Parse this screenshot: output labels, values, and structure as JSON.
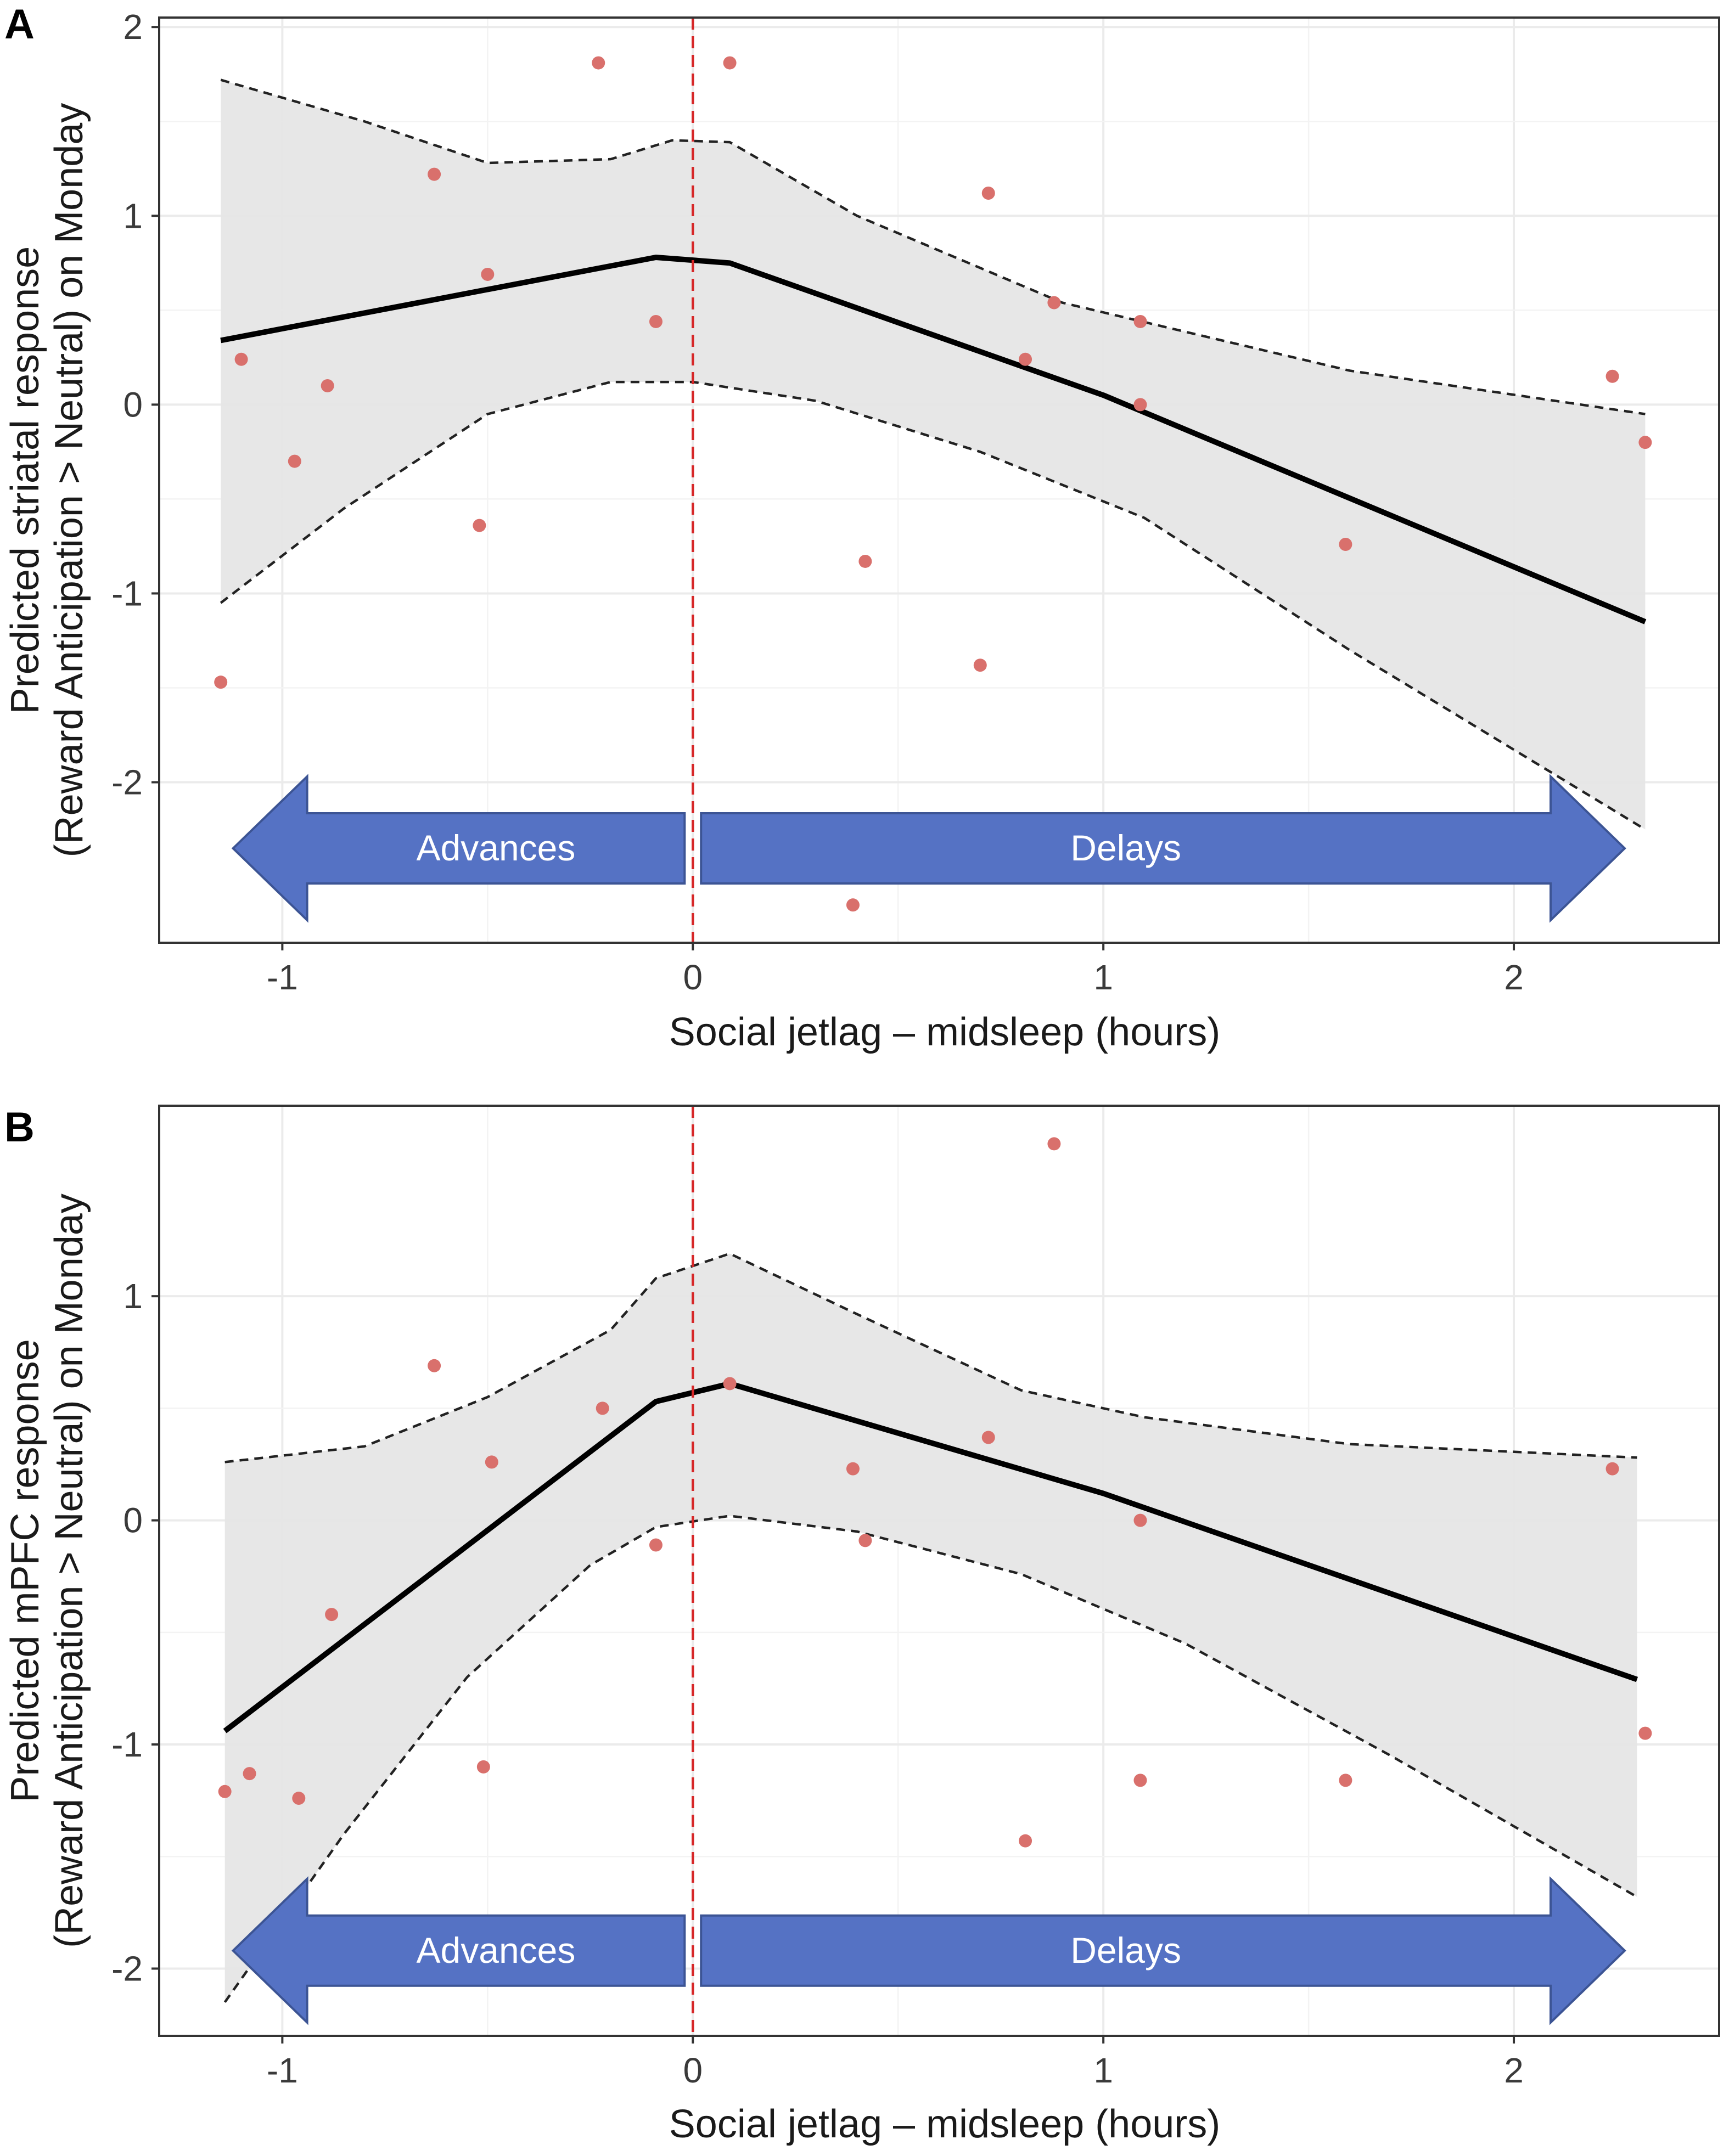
{
  "chart_data": [
    {
      "type": "scatter",
      "panel_label": "A",
      "xlabel": "Social jetlag – midsleep (hours)",
      "ylabel_line1": "Predicted striatal response",
      "ylabel_line2": "(Reward Anticipation > Neutral) on Monday",
      "xlim": [
        -1.3,
        2.5
      ],
      "ylim": [
        -2.85,
        2.05
      ],
      "x_ticks": [
        -1,
        0,
        1,
        2
      ],
      "y_ticks": [
        -2,
        -1,
        0,
        1,
        2
      ],
      "x_tick_labels": [
        "-1",
        "0",
        "1",
        "2"
      ],
      "y_tick_labels": [
        "-2",
        "-1",
        "0",
        "1",
        "2"
      ],
      "grid": true,
      "vline_x": 0,
      "vline_color": "#d62728",
      "point_color": "#d9706c",
      "band_color": "#e6e6e6",
      "points": [
        {
          "x": -1.15,
          "y": -1.47
        },
        {
          "x": -1.1,
          "y": 0.24
        },
        {
          "x": -0.97,
          "y": -0.3
        },
        {
          "x": -0.89,
          "y": 0.1
        },
        {
          "x": -0.63,
          "y": 1.22
        },
        {
          "x": -0.52,
          "y": -0.64
        },
        {
          "x": -0.5,
          "y": 0.69
        },
        {
          "x": -0.23,
          "y": 1.81
        },
        {
          "x": -0.09,
          "y": 0.44
        },
        {
          "x": 0.09,
          "y": 1.81
        },
        {
          "x": 0.39,
          "y": -2.65
        },
        {
          "x": 0.42,
          "y": -0.83
        },
        {
          "x": 0.7,
          "y": -1.38
        },
        {
          "x": 0.72,
          "y": 1.12
        },
        {
          "x": 0.81,
          "y": 0.24
        },
        {
          "x": 0.88,
          "y": 0.54
        },
        {
          "x": 1.09,
          "y": 0.44
        },
        {
          "x": 1.09,
          "y": 0.0
        },
        {
          "x": 1.59,
          "y": -0.74
        },
        {
          "x": 2.24,
          "y": 0.15
        },
        {
          "x": 2.32,
          "y": -0.2
        }
      ],
      "fit": {
        "x": [
          -1.15,
          -0.09,
          0.09,
          1.0,
          2.32
        ],
        "y": [
          0.34,
          0.78,
          0.75,
          0.05,
          -1.15
        ]
      },
      "ci_upper": {
        "x": [
          -1.15,
          -0.8,
          -0.5,
          -0.2,
          -0.05,
          0.09,
          0.4,
          0.9,
          1.6,
          2.32
        ],
        "y": [
          1.72,
          1.5,
          1.28,
          1.3,
          1.4,
          1.39,
          1.0,
          0.54,
          0.18,
          -0.05
        ]
      },
      "ci_lower": {
        "x": [
          -1.15,
          -0.85,
          -0.5,
          -0.2,
          0.0,
          0.3,
          0.7,
          1.1,
          1.6,
          2.32
        ],
        "y": [
          -1.05,
          -0.55,
          -0.05,
          0.12,
          0.12,
          0.02,
          -0.25,
          -0.6,
          -1.3,
          -2.25
        ]
      },
      "arrows": [
        {
          "label": "Advances",
          "from": -0.02,
          "to": -1.12,
          "color": "#5572c4"
        },
        {
          "label": "Delays",
          "from": 0.02,
          "to": 2.27,
          "color": "#5572c4"
        }
      ],
      "arrow_y": -2.35
    },
    {
      "type": "scatter",
      "panel_label": "B",
      "xlabel": "Social jetlag – midsleep (hours)",
      "ylabel_line1": "Predicted mPFC response",
      "ylabel_line2": "(Reward Anticipation > Neutral) on Monday",
      "xlim": [
        -1.3,
        2.5
      ],
      "ylim": [
        -2.3,
        1.85
      ],
      "x_ticks": [
        -1,
        0,
        1,
        2
      ],
      "y_ticks": [
        -2,
        -1,
        0,
        1
      ],
      "x_tick_labels": [
        "-1",
        "0",
        "1",
        "2"
      ],
      "y_tick_labels": [
        "-2",
        "-1",
        "0",
        "1"
      ],
      "grid": true,
      "vline_x": 0,
      "vline_color": "#d62728",
      "point_color": "#d9706c",
      "band_color": "#e6e6e6",
      "points": [
        {
          "x": -1.14,
          "y": -1.21
        },
        {
          "x": -1.08,
          "y": -1.13
        },
        {
          "x": -0.96,
          "y": -1.24
        },
        {
          "x": -0.88,
          "y": -0.42
        },
        {
          "x": -0.63,
          "y": 0.69
        },
        {
          "x": -0.51,
          "y": -1.1
        },
        {
          "x": -0.49,
          "y": 0.26
        },
        {
          "x": -0.22,
          "y": 0.5
        },
        {
          "x": -0.09,
          "y": -0.11
        },
        {
          "x": 0.09,
          "y": 0.61
        },
        {
          "x": 0.39,
          "y": 0.23
        },
        {
          "x": 0.42,
          "y": -0.09
        },
        {
          "x": 0.72,
          "y": 0.37
        },
        {
          "x": 0.81,
          "y": -1.43
        },
        {
          "x": 0.88,
          "y": 1.68
        },
        {
          "x": 1.09,
          "y": 0.0
        },
        {
          "x": 1.09,
          "y": -1.16
        },
        {
          "x": 1.59,
          "y": -1.16
        },
        {
          "x": 2.24,
          "y": 0.23
        },
        {
          "x": 2.32,
          "y": -0.95
        }
      ],
      "fit": {
        "x": [
          -1.14,
          -0.09,
          0.09,
          1.0,
          2.3
        ],
        "y": [
          -0.94,
          0.53,
          0.61,
          0.12,
          -0.71
        ]
      },
      "ci_upper": {
        "x": [
          -1.14,
          -0.8,
          -0.5,
          -0.2,
          -0.09,
          0.09,
          0.4,
          0.8,
          1.1,
          1.6,
          2.3
        ],
        "y": [
          0.26,
          0.33,
          0.55,
          0.85,
          1.08,
          1.19,
          0.92,
          0.58,
          0.46,
          0.34,
          0.28
        ]
      },
      "ci_lower": {
        "x": [
          -1.14,
          -0.85,
          -0.55,
          -0.25,
          -0.09,
          0.09,
          0.4,
          0.8,
          1.2,
          1.7,
          2.3
        ],
        "y": [
          -2.15,
          -1.4,
          -0.7,
          -0.2,
          -0.03,
          0.02,
          -0.05,
          -0.24,
          -0.55,
          -1.05,
          -1.68
        ]
      },
      "arrows": [
        {
          "label": "Advances",
          "from": -0.02,
          "to": -1.12,
          "color": "#5572c4"
        },
        {
          "label": "Delays",
          "from": 0.02,
          "to": 2.27,
          "color": "#5572c4"
        }
      ],
      "arrow_y": -1.92
    }
  ]
}
